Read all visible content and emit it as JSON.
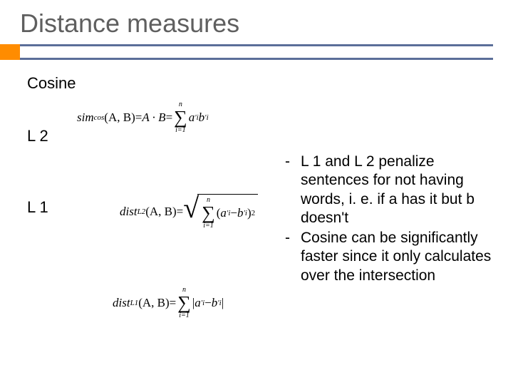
{
  "title": "Distance measures",
  "sections": {
    "cosine": "Cosine",
    "l2": "L 2",
    "l1": "L 1"
  },
  "formulas": {
    "cosine_lhs": "sim",
    "cosine_sub": "cos",
    "cosine_args": "(A, B)",
    "eq": " = ",
    "adotb": "A · B",
    "sum_top": "n",
    "sum_bot": "i=1",
    "ai": "a",
    "bi": "b",
    "prime": "′",
    "i": "i",
    "l2_lhs": "dist",
    "l2_sub": "L2",
    "l1_sub": "L1",
    "args": "(A, B)",
    "minus": " − ",
    "sq": "2",
    "abs": "|"
  },
  "bullets": {
    "b1": "L 1 and L 2 penalize sentences for not having words, i. e. if a has it but b doesn't",
    "b2": "Cosine can be significantly faster since it only calculates over the intersection"
  },
  "colors": {
    "title": "#5f5f5f",
    "accent": "#ff8c00",
    "rule": "#5b6e99",
    "text": "#000000",
    "bg": "#ffffff"
  },
  "typography": {
    "title_fontsize": 36,
    "section_fontsize": 22,
    "bullet_fontsize": 21,
    "formula_fontsize": 17,
    "formula_family": "Times New Roman"
  }
}
